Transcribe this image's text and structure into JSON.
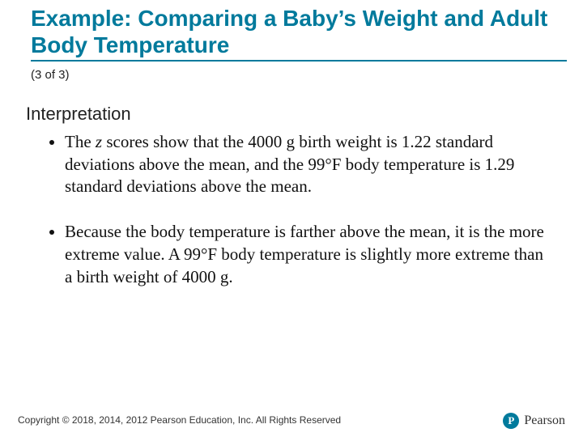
{
  "title": "Example: Comparing a Baby’s Weight and Adult Body Temperature",
  "subline": "(3 of 3)",
  "section_heading": "Interpretation",
  "bullets": [
    {
      "pre": "The ",
      "em": "z",
      "post": " scores show that the 4000 g birth weight is 1.22 standard deviations above the mean, and the 99°F body temperature is 1.29 standard deviations above the mean."
    },
    {
      "pre": "",
      "em": "",
      "post": "Because the body temperature is farther above the mean, it is the more extreme value. A 99°F body temperature is slightly more extreme than a birth weight of 4000 g."
    }
  ],
  "footer": "Copyright © 2018, 2014, 2012 Pearson Education, Inc. All Rights Reserved",
  "logo": {
    "mark": "P",
    "text": "Pearson"
  },
  "colors": {
    "accent": "#007a9c",
    "text": "#111111",
    "background": "#ffffff"
  }
}
